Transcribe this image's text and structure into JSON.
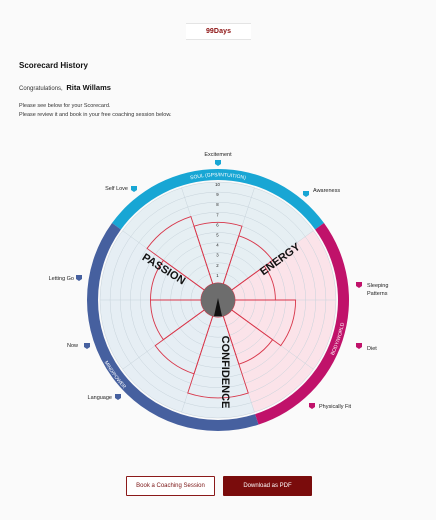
{
  "brand": {
    "logo_text": "99Days"
  },
  "page": {
    "heading": "Scorecard History",
    "greeting_prefix": "Congratulations,",
    "user_name": "Rita Willams",
    "intro_line1": "Please see below for your Scorecard.",
    "intro_line2": "Please review it and book in your free coaching session below."
  },
  "wheel": {
    "scale_max": 10,
    "scale_ticks": [
      "1",
      "2",
      "3",
      "4",
      "5",
      "6",
      "7",
      "8",
      "9",
      "10"
    ],
    "sections": [
      {
        "key": "soul",
        "label": "SOUL (GPS/INTUITION)",
        "color": "#18a6d4",
        "theme": "PASSION"
      },
      {
        "key": "body",
        "label": "BODY/WORLD",
        "color": "#c0126a",
        "theme": "ENERGY"
      },
      {
        "key": "mind",
        "label": "MIND/POWER",
        "color": "#46609f",
        "theme": "CONFIDENCE"
      }
    ],
    "center_color": "#6d6d6d",
    "bar_color": "#d9364a",
    "zone_colors": {
      "soul": "#e6eff3",
      "body": "#fbe3e9",
      "mind": "#e6eef4"
    },
    "categories": [
      {
        "key": "excitement",
        "label": "Excitement",
        "section": "soul",
        "score": 6
      },
      {
        "key": "awareness",
        "label": "Awareness",
        "section": "soul",
        "score": 5
      },
      {
        "key": "sleeping",
        "label": "Sleeping Patterns",
        "section": "body",
        "score": 4
      },
      {
        "key": "diet",
        "label": "Diet",
        "section": "body",
        "score": 6
      },
      {
        "key": "physically_fit",
        "label": "Physically Fit",
        "section": "body",
        "score": 5
      },
      {
        "key": "confidence",
        "label": "Confidence",
        "section": "mind",
        "score": 8
      },
      {
        "key": "language",
        "label": "Language",
        "section": "mind",
        "score": 6
      },
      {
        "key": "now",
        "label": "Now",
        "section": "mind",
        "score": 5
      },
      {
        "key": "letting_go",
        "label": "Letting Go",
        "section": "mind",
        "score": 5
      },
      {
        "key": "self_love",
        "label": "Self Love",
        "section": "soul",
        "score": 7
      }
    ]
  },
  "actions": {
    "book_label": "Book a Coaching Session",
    "download_label": "Download as PDF"
  }
}
